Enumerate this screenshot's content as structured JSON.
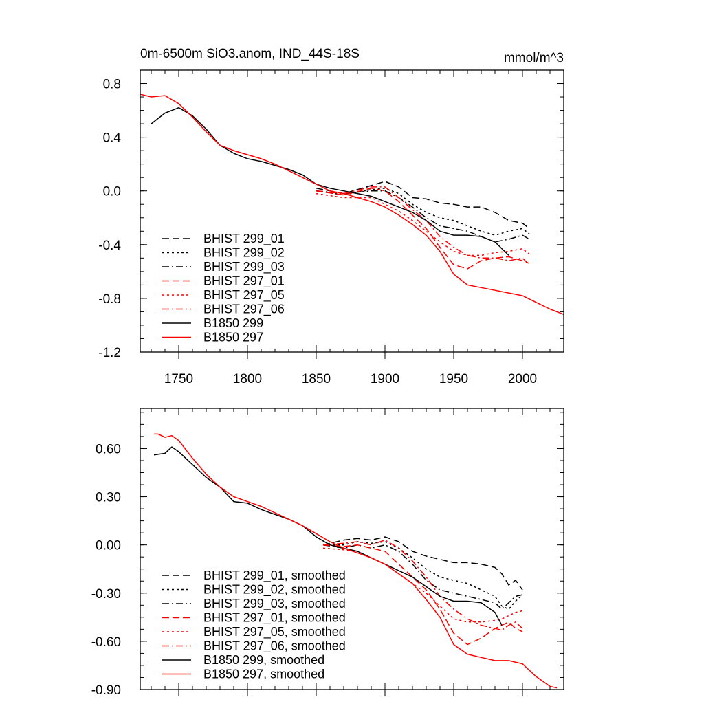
{
  "chart_data": [
    {
      "type": "line",
      "title": "0m-6500m SiO3.anom, IND_44S-18S",
      "units": "mmol/m^3",
      "xlabel": "",
      "ylabel": "",
      "xlim": [
        1722,
        2030
      ],
      "ylim": [
        -1.2,
        0.9
      ],
      "xticks": [
        1750,
        1800,
        1850,
        1900,
        1950,
        2000
      ],
      "yticks": [
        0.8,
        0.4,
        0.0,
        -0.4,
        -0.8,
        -1.2
      ],
      "ytick_labels": [
        "0.8",
        "0.4",
        "0.0",
        "-0.4",
        "-0.8",
        "-1.2"
      ],
      "legend_position": "bottom-left",
      "series": [
        {
          "name": "BHIST 299_01",
          "color": "#000000",
          "dash": "dash",
          "x": [
            1850,
            1870,
            1890,
            1900,
            1910,
            1920,
            1930,
            1940,
            1950,
            1960,
            1970,
            1980,
            1990,
            2000,
            2005
          ],
          "y": [
            0.02,
            -0.02,
            0.04,
            0.07,
            0.03,
            -0.05,
            -0.06,
            -0.09,
            -0.1,
            -0.12,
            -0.12,
            -0.16,
            -0.22,
            -0.24,
            -0.28
          ]
        },
        {
          "name": "BHIST 299_02",
          "color": "#000000",
          "dash": "dot",
          "x": [
            1850,
            1870,
            1890,
            1900,
            1910,
            1920,
            1930,
            1940,
            1950,
            1960,
            1970,
            1980,
            1990,
            2000,
            2005
          ],
          "y": [
            0.0,
            -0.03,
            0.01,
            0.02,
            -0.02,
            -0.1,
            -0.16,
            -0.2,
            -0.22,
            -0.26,
            -0.3,
            -0.33,
            -0.3,
            -0.28,
            -0.32
          ]
        },
        {
          "name": "BHIST 299_03",
          "color": "#000000",
          "dash": "dashdot",
          "x": [
            1850,
            1870,
            1890,
            1900,
            1910,
            1920,
            1930,
            1940,
            1950,
            1960,
            1970,
            1980,
            1990,
            2000,
            2005
          ],
          "y": [
            0.0,
            -0.02,
            0.0,
            0.0,
            -0.05,
            -0.12,
            -0.2,
            -0.26,
            -0.28,
            -0.3,
            -0.34,
            -0.38,
            -0.36,
            -0.33,
            -0.36
          ]
        },
        {
          "name": "BHIST 297_01",
          "color": "#ff0000",
          "dash": "dash",
          "x": [
            1850,
            1870,
            1890,
            1900,
            1910,
            1920,
            1930,
            1940,
            1950,
            1960,
            1970,
            1980,
            1990,
            2000,
            2005
          ],
          "y": [
            0.0,
            -0.03,
            0.02,
            0.0,
            -0.08,
            -0.18,
            -0.28,
            -0.42,
            -0.55,
            -0.58,
            -0.52,
            -0.5,
            -0.49,
            -0.52,
            -0.54
          ]
        },
        {
          "name": "BHIST 297_05",
          "color": "#ff0000",
          "dash": "dot",
          "x": [
            1850,
            1870,
            1890,
            1900,
            1910,
            1920,
            1930,
            1940,
            1950,
            1960,
            1970,
            1980,
            1990,
            2000,
            2005
          ],
          "y": [
            -0.02,
            -0.05,
            -0.05,
            -0.1,
            -0.15,
            -0.22,
            -0.3,
            -0.38,
            -0.45,
            -0.48,
            -0.48,
            -0.46,
            -0.45,
            -0.43,
            -0.47
          ]
        },
        {
          "name": "BHIST 297_06",
          "color": "#ff0000",
          "dash": "dashdot",
          "x": [
            1850,
            1870,
            1890,
            1900,
            1910,
            1920,
            1930,
            1940,
            1950,
            1960,
            1970,
            1980,
            1990,
            2000,
            2005
          ],
          "y": [
            0.0,
            -0.02,
            0.03,
            0.03,
            -0.05,
            -0.14,
            -0.22,
            -0.34,
            -0.42,
            -0.48,
            -0.5,
            -0.5,
            -0.52,
            -0.5,
            -0.55
          ]
        },
        {
          "name": "B1850 299",
          "color": "#000000",
          "dash": "solid",
          "x": [
            1730,
            1740,
            1750,
            1760,
            1770,
            1780,
            1790,
            1800,
            1810,
            1820,
            1830,
            1840,
            1850,
            1860,
            1870,
            1880,
            1890,
            1900,
            1910,
            1920,
            1930,
            1940,
            1950,
            1960,
            1970,
            1980,
            1990
          ],
          "y": [
            0.5,
            0.58,
            0.62,
            0.56,
            0.46,
            0.34,
            0.28,
            0.24,
            0.22,
            0.19,
            0.16,
            0.12,
            0.05,
            0.02,
            0.0,
            -0.02,
            -0.04,
            -0.08,
            -0.12,
            -0.16,
            -0.22,
            -0.3,
            -0.33,
            -0.33,
            -0.34,
            -0.38,
            -0.48
          ]
        },
        {
          "name": "B1850 297",
          "color": "#ff0000",
          "dash": "solid",
          "x": [
            1722,
            1730,
            1740,
            1750,
            1760,
            1770,
            1780,
            1790,
            1800,
            1810,
            1820,
            1830,
            1840,
            1850,
            1860,
            1870,
            1880,
            1890,
            1900,
            1910,
            1920,
            1930,
            1940,
            1950,
            1960,
            1970,
            1980,
            1990,
            2000,
            2010,
            2020,
            2030
          ],
          "y": [
            0.72,
            0.7,
            0.71,
            0.65,
            0.55,
            0.44,
            0.34,
            0.3,
            0.27,
            0.24,
            0.2,
            0.15,
            0.1,
            0.05,
            0.0,
            -0.02,
            -0.05,
            -0.08,
            -0.12,
            -0.18,
            -0.25,
            -0.33,
            -0.45,
            -0.62,
            -0.7,
            -0.72,
            -0.74,
            -0.76,
            -0.78,
            -0.83,
            -0.88,
            -0.92
          ]
        }
      ]
    },
    {
      "type": "line",
      "title": "",
      "xlabel": "",
      "ylabel": "",
      "xlim": [
        1722,
        2030
      ],
      "ylim": [
        -0.9,
        0.85
      ],
      "xticks": [
        1750,
        1800,
        1850,
        1900,
        1950,
        2000
      ],
      "yticks": [
        0.6,
        0.3,
        0.0,
        -0.3,
        -0.6,
        -0.9
      ],
      "ytick_labels": [
        "0.60",
        "0.30",
        "0.00",
        "-0.30",
        "-0.60",
        "-0.90"
      ],
      "legend_position": "bottom-left",
      "series": [
        {
          "name": "BHIST 299_01, smoothed",
          "color": "#000000",
          "dash": "dash",
          "x": [
            1855,
            1870,
            1880,
            1890,
            1900,
            1910,
            1920,
            1930,
            1940,
            1950,
            1960,
            1970,
            1980,
            1985,
            1990,
            1995,
            2000
          ],
          "y": [
            0.0,
            0.03,
            0.04,
            0.03,
            0.05,
            0.02,
            -0.04,
            -0.07,
            -0.09,
            -0.11,
            -0.11,
            -0.12,
            -0.14,
            -0.18,
            -0.25,
            -0.22,
            -0.28
          ]
        },
        {
          "name": "BHIST 299_02, smoothed",
          "color": "#000000",
          "dash": "dot",
          "x": [
            1855,
            1870,
            1880,
            1890,
            1900,
            1910,
            1920,
            1930,
            1940,
            1950,
            1960,
            1970,
            1980,
            1985,
            1990,
            1995,
            2000
          ],
          "y": [
            0.0,
            0.0,
            0.02,
            0.01,
            0.02,
            -0.02,
            -0.08,
            -0.15,
            -0.2,
            -0.22,
            -0.24,
            -0.28,
            -0.32,
            -0.38,
            -0.4,
            -0.35,
            -0.31
          ]
        },
        {
          "name": "BHIST 299_03, smoothed",
          "color": "#000000",
          "dash": "dashdot",
          "x": [
            1855,
            1870,
            1880,
            1890,
            1900,
            1910,
            1920,
            1930,
            1940,
            1950,
            1960,
            1970,
            1980,
            1985,
            1990,
            1995,
            2000
          ],
          "y": [
            0.0,
            -0.02,
            0.0,
            -0.02,
            0.0,
            -0.04,
            -0.12,
            -0.22,
            -0.28,
            -0.3,
            -0.32,
            -0.34,
            -0.36,
            -0.4,
            -0.36,
            -0.32,
            -0.31
          ]
        },
        {
          "name": "BHIST 297_01, smoothed",
          "color": "#ff0000",
          "dash": "dash",
          "x": [
            1855,
            1870,
            1880,
            1890,
            1900,
            1910,
            1920,
            1930,
            1940,
            1950,
            1960,
            1970,
            1980,
            1985,
            1990,
            1995,
            2000
          ],
          "y": [
            0.0,
            -0.01,
            0.0,
            -0.02,
            -0.04,
            -0.12,
            -0.2,
            -0.28,
            -0.4,
            -0.55,
            -0.62,
            -0.58,
            -0.52,
            -0.5,
            -0.48,
            -0.52,
            -0.54
          ]
        },
        {
          "name": "BHIST 297_05, smoothed",
          "color": "#ff0000",
          "dash": "dot",
          "x": [
            1855,
            1870,
            1880,
            1890,
            1900,
            1910,
            1920,
            1930,
            1940,
            1950,
            1960,
            1970,
            1980,
            1985,
            1990,
            1995,
            2000
          ],
          "y": [
            -0.02,
            -0.03,
            -0.04,
            -0.08,
            -0.12,
            -0.18,
            -0.24,
            -0.3,
            -0.38,
            -0.46,
            -0.48,
            -0.48,
            -0.47,
            -0.46,
            -0.44,
            -0.42,
            -0.41
          ]
        },
        {
          "name": "BHIST 297_06, smoothed",
          "color": "#ff0000",
          "dash": "dashdot",
          "x": [
            1855,
            1870,
            1880,
            1890,
            1900,
            1910,
            1920,
            1930,
            1940,
            1950,
            1960,
            1970,
            1980,
            1985,
            1990,
            1995,
            2000
          ],
          "y": [
            0.0,
            0.01,
            0.02,
            0.0,
            0.03,
            -0.02,
            -0.1,
            -0.2,
            -0.32,
            -0.4,
            -0.46,
            -0.5,
            -0.52,
            -0.53,
            -0.5,
            -0.48,
            -0.52
          ]
        },
        {
          "name": "B1850 299, smoothed",
          "color": "#000000",
          "dash": "solid",
          "x": [
            1732,
            1740,
            1745,
            1750,
            1760,
            1770,
            1780,
            1790,
            1800,
            1810,
            1820,
            1830,
            1840,
            1850,
            1860,
            1870,
            1880,
            1890,
            1900,
            1910,
            1920,
            1930,
            1940,
            1950,
            1960,
            1970,
            1980,
            1985
          ],
          "y": [
            0.56,
            0.57,
            0.61,
            0.58,
            0.5,
            0.42,
            0.36,
            0.27,
            0.26,
            0.22,
            0.19,
            0.16,
            0.12,
            0.05,
            0.0,
            -0.02,
            -0.04,
            -0.08,
            -0.12,
            -0.16,
            -0.2,
            -0.26,
            -0.32,
            -0.35,
            -0.35,
            -0.36,
            -0.42,
            -0.5
          ]
        },
        {
          "name": "B1850 297, smoothed",
          "color": "#ff0000",
          "dash": "solid",
          "x": [
            1732,
            1735,
            1740,
            1745,
            1750,
            1760,
            1770,
            1780,
            1790,
            1800,
            1810,
            1820,
            1830,
            1840,
            1850,
            1860,
            1870,
            1880,
            1890,
            1900,
            1910,
            1920,
            1930,
            1940,
            1950,
            1960,
            1970,
            1980,
            1990,
            2000,
            2010,
            2020,
            2025
          ],
          "y": [
            0.69,
            0.69,
            0.67,
            0.68,
            0.65,
            0.54,
            0.44,
            0.36,
            0.3,
            0.27,
            0.24,
            0.2,
            0.16,
            0.12,
            0.07,
            0.02,
            -0.02,
            -0.05,
            -0.08,
            -0.12,
            -0.18,
            -0.24,
            -0.34,
            -0.45,
            -0.62,
            -0.68,
            -0.7,
            -0.72,
            -0.72,
            -0.74,
            -0.82,
            -0.88,
            -0.89
          ]
        }
      ]
    }
  ]
}
